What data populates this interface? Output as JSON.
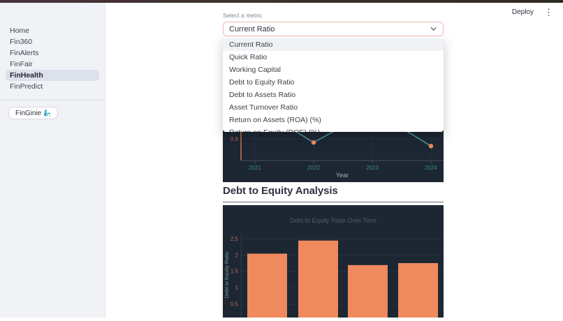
{
  "header": {
    "deploy_label": "Deploy",
    "overflow_menu_glyph": "⋮"
  },
  "sidebar": {
    "items": [
      {
        "label": "Home",
        "active": false
      },
      {
        "label": "Fin360",
        "active": false
      },
      {
        "label": "FinAlerts",
        "active": false
      },
      {
        "label": "FinFair",
        "active": false
      },
      {
        "label": "FinHealth",
        "active": true
      },
      {
        "label": "FinPredict",
        "active": false
      }
    ],
    "finginie_label": "FinGinie",
    "finginie_icon": "🧞‍♂️"
  },
  "metric_select": {
    "label": "Select a metric",
    "value": "Current Ratio",
    "options": [
      "Current Ratio",
      "Quick Ratio",
      "Working Capital",
      "Debt to Equity Ratio",
      "Debt to Assets Ratio",
      "Asset Turnover Ratio",
      "Return on Assets (ROA) (%)",
      "Return on Equity (ROE) (%)"
    ]
  },
  "section": {
    "heading": "Debt to Equity Analysis"
  },
  "colors": {
    "sidebar_bg": "#f0f2f6",
    "active_item_bg": "#dde1ec",
    "chart_bg": "#1c2733",
    "bar_orange": "#ee8a5e",
    "line_teal": "#4f939c",
    "xtick_teal": "#3f8691",
    "ytick_red": "#c0695c",
    "select_border_pink": "#f0b6b1",
    "grid_color": "#27333f"
  },
  "chart_data": [
    {
      "type": "line",
      "x": [
        "2021",
        "2022",
        "2023",
        "2024"
      ],
      "values": [
        1.35,
        0.85,
        1.3,
        0.8
      ],
      "xlabel": "Year",
      "yticks_visible": [
        0.9
      ],
      "ylim": [
        0.6,
        2.1
      ],
      "legend": "none",
      "grid": "on",
      "line_color": "#4f939c",
      "marker_color": "#ee8a5e",
      "axis_line_color": "#ee8a5e",
      "xtick_color": "#3f8691",
      "ytick_color": "#c0695c",
      "xlabel_color": "#9fb0bc"
    },
    {
      "type": "bar",
      "title": "Debt to Equity Ratio Over Time",
      "ylabel": "Debt to Equity Ratio",
      "values": [
        2.05,
        2.45,
        1.7,
        1.76
      ],
      "yticks": [
        0.5,
        1,
        1.5,
        2,
        2.5
      ],
      "ylim": [
        0,
        2.6
      ],
      "grid": "on",
      "bar_color": "#ee8a5e",
      "title_color": "#4e5a66",
      "ytick_color": "#c0695c",
      "ylabel_color": "#7d95a0"
    }
  ]
}
